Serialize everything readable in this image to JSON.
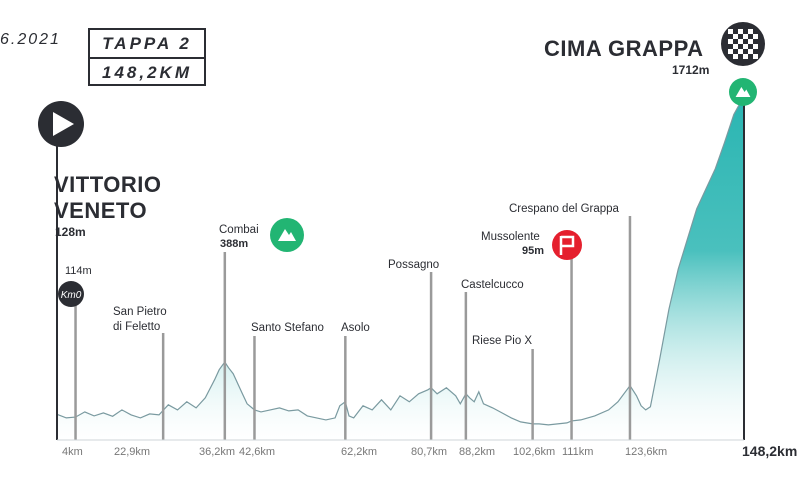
{
  "header": {
    "date": "6.2021",
    "stage_label": "TAPPA 2",
    "stage_distance": "148,2KM"
  },
  "start": {
    "name_line1": "VITTORIO",
    "name_line2": "VENETO",
    "altitude": "128m"
  },
  "finish": {
    "name": "CIMA GRAPPA",
    "altitude": "1712m"
  },
  "colors": {
    "profile_fill": "#2ab5b2",
    "profile_edge": "#7a9aa0",
    "pole": "#9a9a9a",
    "climb_marker": "#22b573",
    "sprint_marker": "#e5202e",
    "dark": "#2b2d33"
  },
  "chart_data": {
    "type": "area",
    "xlabel": "",
    "ylabel": "",
    "xlim": [
      0,
      148.2
    ],
    "ylim": [
      0,
      1712
    ],
    "points": [
      {
        "km": 4,
        "label": "Vittorio Veneto",
        "km_label": "4km",
        "altitude_label": "114m",
        "marker": "km0"
      },
      {
        "km": 22.9,
        "label_line1": "San Pietro",
        "label_line2": "di Feletto",
        "km_label": "22,9km"
      },
      {
        "km": 36.2,
        "label": "Combai",
        "km_label": "36,2km",
        "altitude_label": "388m",
        "marker": "climb"
      },
      {
        "km": 42.6,
        "label": "Santo Stefano",
        "km_label": "42,6km"
      },
      {
        "km": 62.2,
        "label": "Asolo",
        "km_label": "62,2km"
      },
      {
        "km": 80.7,
        "label": "Possagno",
        "km_label": "80,7km"
      },
      {
        "km": 88.2,
        "label": "Castelcucco",
        "km_label": "88,2km"
      },
      {
        "km": 102.6,
        "label": "Riese Pio X",
        "km_label": "102,6km"
      },
      {
        "km": 111,
        "label": "Mussolente",
        "km_label": "111km",
        "altitude_label": "95m",
        "marker": "sprint"
      },
      {
        "km": 123.6,
        "label": "Crespano del Grappa",
        "km_label": "123,6km"
      },
      {
        "km": 148.2,
        "label": "Cima Grappa",
        "km_label": "148,2km",
        "altitude_label": "1712m",
        "marker": "finish"
      }
    ],
    "profile": [
      [
        0,
        128
      ],
      [
        2,
        110
      ],
      [
        4,
        114
      ],
      [
        6,
        140
      ],
      [
        8,
        120
      ],
      [
        10,
        135
      ],
      [
        12,
        118
      ],
      [
        14,
        150
      ],
      [
        16,
        125
      ],
      [
        18,
        110
      ],
      [
        20,
        130
      ],
      [
        22,
        125
      ],
      [
        23,
        150
      ],
      [
        24,
        175
      ],
      [
        26,
        150
      ],
      [
        28,
        190
      ],
      [
        30,
        160
      ],
      [
        32,
        210
      ],
      [
        34,
        300
      ],
      [
        35,
        350
      ],
      [
        36.2,
        388
      ],
      [
        37,
        360
      ],
      [
        38,
        330
      ],
      [
        39,
        280
      ],
      [
        40,
        230
      ],
      [
        41,
        180
      ],
      [
        42.6,
        150
      ],
      [
        44,
        140
      ],
      [
        46,
        150
      ],
      [
        48,
        160
      ],
      [
        50,
        145
      ],
      [
        52,
        150
      ],
      [
        54,
        120
      ],
      [
        56,
        110
      ],
      [
        58,
        100
      ],
      [
        60,
        110
      ],
      [
        61,
        170
      ],
      [
        62.2,
        190
      ],
      [
        63,
        120
      ],
      [
        64,
        110
      ],
      [
        66,
        170
      ],
      [
        68,
        150
      ],
      [
        70,
        200
      ],
      [
        72,
        150
      ],
      [
        74,
        220
      ],
      [
        76,
        190
      ],
      [
        78,
        230
      ],
      [
        80,
        250
      ],
      [
        80.7,
        260
      ],
      [
        82,
        230
      ],
      [
        84,
        260
      ],
      [
        86,
        220
      ],
      [
        87,
        180
      ],
      [
        88.2,
        230
      ],
      [
        89,
        210
      ],
      [
        90,
        190
      ],
      [
        91,
        240
      ],
      [
        92,
        180
      ],
      [
        94,
        160
      ],
      [
        96,
        135
      ],
      [
        98,
        110
      ],
      [
        100,
        90
      ],
      [
        102.6,
        80
      ],
      [
        104,
        80
      ],
      [
        106,
        75
      ],
      [
        108,
        80
      ],
      [
        110,
        85
      ],
      [
        111,
        95
      ],
      [
        113,
        100
      ],
      [
        116,
        120
      ],
      [
        119,
        150
      ],
      [
        121,
        190
      ],
      [
        123.6,
        270
      ],
      [
        125,
        220
      ],
      [
        126,
        170
      ],
      [
        127,
        150
      ],
      [
        128,
        165
      ],
      [
        130,
        400
      ],
      [
        132,
        650
      ],
      [
        134,
        850
      ],
      [
        136,
        1000
      ],
      [
        138,
        1150
      ],
      [
        140,
        1250
      ],
      [
        142,
        1350
      ],
      [
        144,
        1480
      ],
      [
        146,
        1620
      ],
      [
        148.2,
        1712
      ]
    ]
  }
}
